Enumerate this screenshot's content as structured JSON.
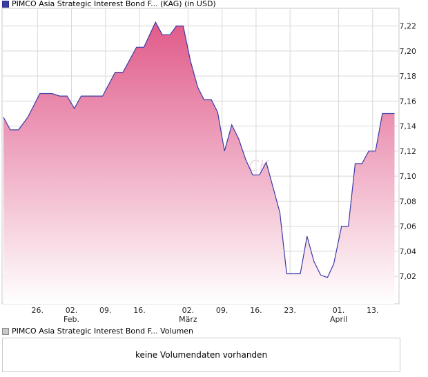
{
  "legend_top": {
    "label": "PIMCO Asia Strategic Interest Bond F... (KAG) (in USD)",
    "swatch_color": "#3a3aa8"
  },
  "legend_bottom": {
    "label": "PIMCO Asia Strategic Interest Bond F... Volumen",
    "swatch_color": "#c8c8c8"
  },
  "volume_panel": {
    "message": "keine Volumendaten vorhanden"
  },
  "watermark": "CK",
  "colors": {
    "line": "#3a3aa8",
    "fill_top": "#e05a8a",
    "fill_bottom": "#ffffff",
    "grid": "#d8d8d8",
    "frame": "#c8c8c8"
  },
  "chart_data": {
    "type": "area",
    "title": "PIMCO Asia Strategic Interest Bond F... (KAG) (in USD)",
    "xlabel": "",
    "ylabel": "",
    "ylim": [
      6.998,
      7.233
    ],
    "y_ticks": [
      7.02,
      7.04,
      7.06,
      7.08,
      7.1,
      7.12,
      7.14,
      7.16,
      7.18,
      7.2,
      7.22
    ],
    "y_tick_labels": [
      "7,02",
      "7,04",
      "7,06",
      "7,08",
      "7,10",
      "7,12",
      "7,14",
      "7,16",
      "7,18",
      "7,20",
      "7,22"
    ],
    "x_range": [
      0,
      81
    ],
    "x_ticks": [
      {
        "x": 7,
        "label": "26.",
        "sub": ""
      },
      {
        "x": 14,
        "label": "02.",
        "sub": "Feb."
      },
      {
        "x": 21,
        "label": "09.",
        "sub": ""
      },
      {
        "x": 28,
        "label": "16.",
        "sub": ""
      },
      {
        "x": 38,
        "label": "02.",
        "sub": "März"
      },
      {
        "x": 45,
        "label": "09.",
        "sub": ""
      },
      {
        "x": 52,
        "label": "16.",
        "sub": ""
      },
      {
        "x": 59,
        "label": "23.",
        "sub": ""
      },
      {
        "x": 69,
        "label": "01.",
        "sub": "April"
      },
      {
        "x": 76,
        "label": "13.",
        "sub": ""
      }
    ],
    "series": [
      {
        "name": "PIMCO Asia Strategic Interest Bond F... (KAG) (in USD)",
        "points": [
          [
            0,
            7.147
          ],
          [
            1.4,
            7.137
          ],
          [
            3.1,
            7.137
          ],
          [
            5,
            7.147
          ],
          [
            7.5,
            7.166
          ],
          [
            10,
            7.166
          ],
          [
            11.6,
            7.164
          ],
          [
            13.1,
            7.164
          ],
          [
            14.6,
            7.154
          ],
          [
            16,
            7.164
          ],
          [
            20.4,
            7.164
          ],
          [
            23,
            7.183
          ],
          [
            24.6,
            7.183
          ],
          [
            27.4,
            7.203
          ],
          [
            28.9,
            7.203
          ],
          [
            31.3,
            7.223
          ],
          [
            32.7,
            7.213
          ],
          [
            34.3,
            7.213
          ],
          [
            35.6,
            7.22
          ],
          [
            37,
            7.22
          ],
          [
            38.5,
            7.192
          ],
          [
            40,
            7.171
          ],
          [
            41.3,
            7.161
          ],
          [
            42.8,
            7.161
          ],
          [
            44.1,
            7.151
          ],
          [
            45.5,
            7.12
          ],
          [
            47,
            7.141
          ],
          [
            48.4,
            7.13
          ],
          [
            49.9,
            7.113
          ],
          [
            51.3,
            7.101
          ],
          [
            52.7,
            7.101
          ],
          [
            54.1,
            7.111
          ],
          [
            56.9,
            7.071
          ],
          [
            58.3,
            7.022
          ],
          [
            61.1,
            7.022
          ],
          [
            62.5,
            7.052
          ],
          [
            63.9,
            7.032
          ],
          [
            65.3,
            7.021
          ],
          [
            66.7,
            7.019
          ],
          [
            68,
            7.03
          ],
          [
            69.6,
            7.06
          ],
          [
            71,
            7.06
          ],
          [
            72.4,
            7.11
          ],
          [
            73.8,
            7.11
          ],
          [
            75.2,
            7.12
          ],
          [
            76.6,
            7.12
          ],
          [
            78,
            7.15
          ],
          [
            80.5,
            7.15
          ]
        ]
      }
    ]
  }
}
